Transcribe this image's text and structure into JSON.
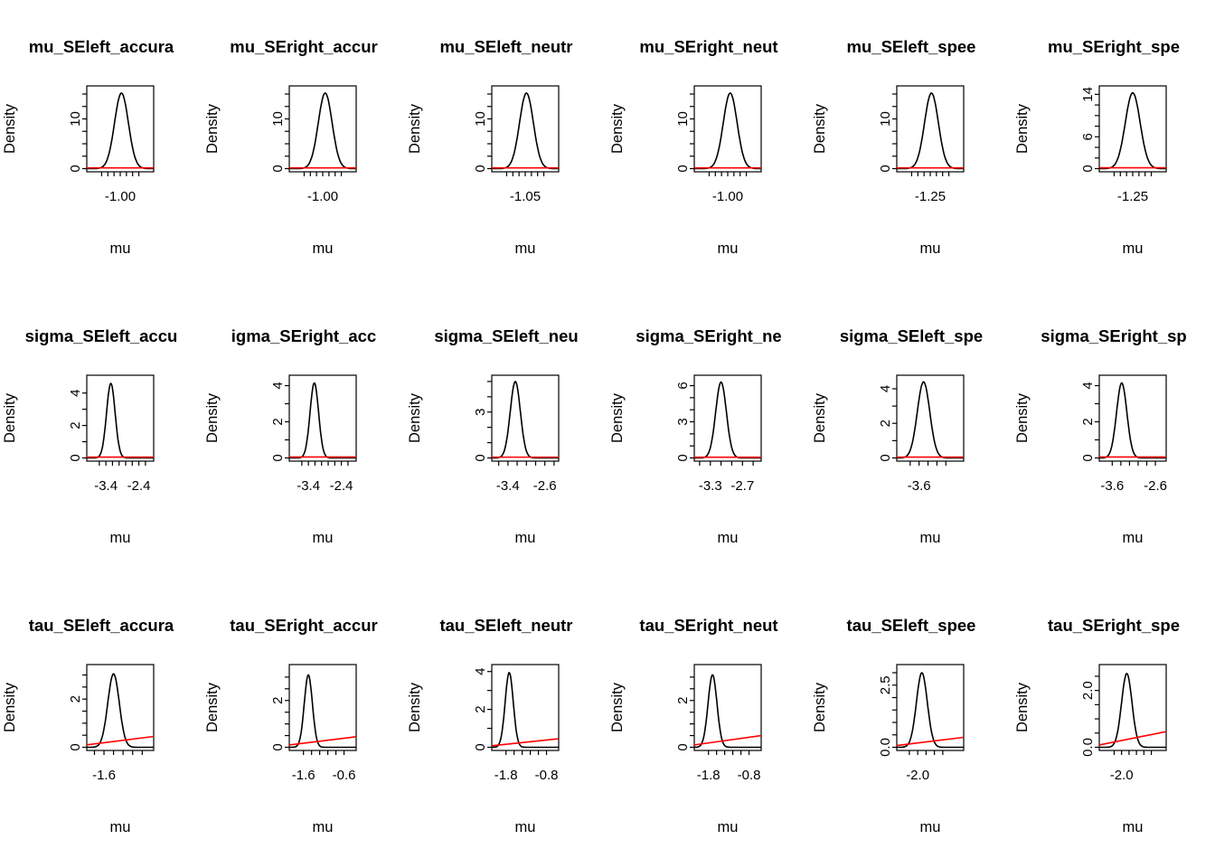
{
  "style": {
    "background": "#ffffff",
    "curve_color": "#000000",
    "prior_color": "#FF0000"
  },
  "chart_data": [
    {
      "type": "line",
      "title": "mu_SEleft_accura",
      "xlabel": "mu",
      "ylabel": "Density",
      "xlim": [
        -1.135,
        -0.865
      ],
      "ylim": [
        0,
        16
      ],
      "x_ticks": [
        -1.075,
        -1.05,
        -1.025,
        -1.0,
        -0.975,
        -0.95,
        -0.925
      ],
      "x_tick_labels": [
        {
          "value": -1.0,
          "label": "-1.00"
        }
      ],
      "y_ticks": [
        0,
        2.5,
        5,
        7.5,
        10,
        12.5,
        15
      ],
      "y_tick_labels": [
        {
          "value": 0,
          "label": "0"
        },
        {
          "value": 10,
          "label": "10"
        }
      ],
      "curve": {
        "mean": -0.995,
        "sd": 0.028,
        "peak": 15.2
      },
      "prior": {
        "y_start": 0.15,
        "y_end": 0.15
      }
    },
    {
      "type": "line",
      "title": "mu_SEright_accur",
      "xlabel": "mu",
      "ylabel": "Density",
      "xlim": [
        -1.135,
        -0.865
      ],
      "ylim": [
        0,
        16
      ],
      "x_ticks": [
        -1.075,
        -1.05,
        -1.025,
        -1.0,
        -0.975,
        -0.95,
        -0.925
      ],
      "x_tick_labels": [
        {
          "value": -1.0,
          "label": "-1.00"
        }
      ],
      "y_ticks": [
        0,
        2.5,
        5,
        7.5,
        10,
        12.5,
        15
      ],
      "y_tick_labels": [
        {
          "value": 0,
          "label": "0"
        },
        {
          "value": 10,
          "label": "10"
        }
      ],
      "curve": {
        "mean": -0.99,
        "sd": 0.028,
        "peak": 15.2
      },
      "prior": {
        "y_start": 0.15,
        "y_end": 0.15
      }
    },
    {
      "type": "line",
      "title": "mu_SEleft_neutr",
      "xlabel": "mu",
      "ylabel": "Density",
      "xlim": [
        -1.185,
        -0.915
      ],
      "ylim": [
        0,
        16
      ],
      "x_ticks": [
        -1.125,
        -1.1,
        -1.075,
        -1.05,
        -1.025,
        -1.0,
        -0.975
      ],
      "x_tick_labels": [
        {
          "value": -1.05,
          "label": "-1.05"
        }
      ],
      "y_ticks": [
        0,
        2.5,
        5,
        7.5,
        10,
        12.5,
        15
      ],
      "y_tick_labels": [
        {
          "value": 0,
          "label": "0"
        },
        {
          "value": 10,
          "label": "10"
        }
      ],
      "curve": {
        "mean": -1.045,
        "sd": 0.028,
        "peak": 15.2
      },
      "prior": {
        "y_start": 0.15,
        "y_end": 0.15
      }
    },
    {
      "type": "line",
      "title": "mu_SEright_neut",
      "xlabel": "mu",
      "ylabel": "Density",
      "xlim": [
        -1.135,
        -0.865
      ],
      "ylim": [
        0,
        16
      ],
      "x_ticks": [
        -1.075,
        -1.05,
        -1.025,
        -1.0,
        -0.975,
        -0.95,
        -0.925
      ],
      "x_tick_labels": [
        {
          "value": -1.0,
          "label": "-1.00"
        }
      ],
      "y_ticks": [
        0,
        2.5,
        5,
        7.5,
        10,
        12.5,
        15
      ],
      "y_tick_labels": [
        {
          "value": 0,
          "label": "0"
        },
        {
          "value": 10,
          "label": "10"
        }
      ],
      "curve": {
        "mean": -0.99,
        "sd": 0.028,
        "peak": 15.2
      },
      "prior": {
        "y_start": 0.15,
        "y_end": 0.15
      }
    },
    {
      "type": "line",
      "title": "mu_SEleft_spee",
      "xlabel": "mu",
      "ylabel": "Density",
      "xlim": [
        -1.385,
        -1.115
      ],
      "ylim": [
        0,
        16
      ],
      "x_ticks": [
        -1.325,
        -1.3,
        -1.275,
        -1.25,
        -1.225,
        -1.2,
        -1.175
      ],
      "x_tick_labels": [
        {
          "value": -1.25,
          "label": "-1.25"
        }
      ],
      "y_ticks": [
        0,
        2.5,
        5,
        7.5,
        10,
        12.5,
        15
      ],
      "y_tick_labels": [
        {
          "value": 0,
          "label": "0"
        },
        {
          "value": 10,
          "label": "10"
        }
      ],
      "curve": {
        "mean": -1.245,
        "sd": 0.028,
        "peak": 15.2
      },
      "prior": {
        "y_start": 0.15,
        "y_end": 0.15
      }
    },
    {
      "type": "line",
      "title": "mu_SEright_spe",
      "xlabel": "mu",
      "ylabel": "Density",
      "xlim": [
        -1.385,
        -1.115
      ],
      "ylim": [
        0,
        15
      ],
      "x_ticks": [
        -1.325,
        -1.3,
        -1.275,
        -1.25,
        -1.225,
        -1.2,
        -1.175
      ],
      "x_tick_labels": [
        {
          "value": -1.25,
          "label": "-1.25"
        }
      ],
      "y_ticks": [
        0,
        2,
        4,
        6,
        8,
        10,
        12,
        14
      ],
      "y_tick_labels": [
        {
          "value": 0,
          "label": "0"
        },
        {
          "value": 6,
          "label": "6"
        },
        {
          "value": 14,
          "label": "14"
        }
      ],
      "curve": {
        "mean": -1.25,
        "sd": 0.03,
        "peak": 14.3
      },
      "prior": {
        "y_start": 0.15,
        "y_end": 0.15
      }
    },
    {
      "type": "line",
      "title": "sigma_SEleft_accu",
      "xlabel": "mu",
      "ylabel": "Density",
      "xlim": [
        -3.98,
        -1.95
      ],
      "ylim": [
        0,
        4.9
      ],
      "x_ticks": [
        -3.6,
        -3.4,
        -3.2,
        -3.0,
        -2.8,
        -2.6,
        -2.4,
        -2.2
      ],
      "x_tick_labels": [
        {
          "value": -3.4,
          "label": "-3.4"
        },
        {
          "value": -2.4,
          "label": "-2.4"
        }
      ],
      "y_ticks": [
        0,
        1,
        2,
        3,
        4
      ],
      "y_tick_labels": [
        {
          "value": 0,
          "label": "0"
        },
        {
          "value": 2,
          "label": "2"
        },
        {
          "value": 4,
          "label": "4"
        }
      ],
      "curve": {
        "mean": -3.25,
        "sd": 0.13,
        "peak": 4.6
      },
      "prior": {
        "y_start": 0.05,
        "y_end": 0.05
      }
    },
    {
      "type": "line",
      "title": "igma_SEright_acc",
      "xlabel": "mu",
      "ylabel": "Density",
      "xlim": [
        -3.98,
        -1.95
      ],
      "ylim": [
        0,
        4.4
      ],
      "x_ticks": [
        -3.6,
        -3.4,
        -3.2,
        -3.0,
        -2.8,
        -2.6,
        -2.4,
        -2.2
      ],
      "x_tick_labels": [
        {
          "value": -3.4,
          "label": "-3.4"
        },
        {
          "value": -2.4,
          "label": "-2.4"
        }
      ],
      "y_ticks": [
        0,
        1,
        2,
        3,
        4
      ],
      "y_tick_labels": [
        {
          "value": 0,
          "label": "0"
        },
        {
          "value": 2,
          "label": "2"
        },
        {
          "value": 4,
          "label": "4"
        }
      ],
      "curve": {
        "mean": -3.22,
        "sd": 0.13,
        "peak": 4.15
      },
      "prior": {
        "y_start": 0.05,
        "y_end": 0.05
      }
    },
    {
      "type": "line",
      "title": "sigma_SEleft_neu",
      "xlabel": "mu",
      "ylabel": "Density",
      "xlim": [
        -3.75,
        -2.3
      ],
      "ylim": [
        0,
        5.2
      ],
      "x_ticks": [
        -3.6,
        -3.4,
        -3.2,
        -3.0,
        -2.8,
        -2.6,
        -2.4
      ],
      "x_tick_labels": [
        {
          "value": -3.4,
          "label": "-3.4"
        },
        {
          "value": -2.6,
          "label": "-2.6"
        }
      ],
      "y_ticks": [
        0,
        1,
        2,
        3,
        4,
        5
      ],
      "y_tick_labels": [
        {
          "value": 0,
          "label": "0"
        },
        {
          "value": 3,
          "label": "3"
        }
      ],
      "curve": {
        "mean": -3.24,
        "sd": 0.11,
        "peak": 5.0
      },
      "prior": {
        "y_start": 0.05,
        "y_end": 0.05
      }
    },
    {
      "type": "line",
      "title": "sigma_SEright_ne",
      "xlabel": "mu",
      "ylabel": "Density",
      "xlim": [
        -3.6,
        -2.35
      ],
      "ylim": [
        0,
        6.6
      ],
      "x_ticks": [
        -3.5,
        -3.3,
        -3.1,
        -2.9,
        -2.7,
        -2.5
      ],
      "x_tick_labels": [
        {
          "value": -3.3,
          "label": "-3.3"
        },
        {
          "value": -2.7,
          "label": "-2.7"
        }
      ],
      "y_ticks": [
        0,
        1,
        2,
        3,
        4,
        5,
        6
      ],
      "y_tick_labels": [
        {
          "value": 0,
          "label": "0"
        },
        {
          "value": 3,
          "label": "3"
        },
        {
          "value": 6,
          "label": "6"
        }
      ],
      "curve": {
        "mean": -3.1,
        "sd": 0.1,
        "peak": 6.3
      },
      "prior": {
        "y_start": 0.06,
        "y_end": 0.06
      }
    },
    {
      "type": "line",
      "title": "sigma_SEleft_spe",
      "xlabel": "mu",
      "ylabel": "Density",
      "xlim": [
        -3.85,
        -3.1
      ],
      "ylim": [
        0,
        4.6
      ],
      "x_ticks": [
        -3.7,
        -3.6,
        -3.5,
        -3.4,
        -3.3
      ],
      "x_tick_labels": [
        {
          "value": -3.6,
          "label": "-3.6"
        }
      ],
      "y_ticks": [
        0,
        1,
        2,
        3,
        4
      ],
      "y_tick_labels": [
        {
          "value": 0,
          "label": "0"
        },
        {
          "value": 2,
          "label": "2"
        },
        {
          "value": 4,
          "label": "4"
        }
      ],
      "curve": {
        "mean": -3.55,
        "sd": 0.07,
        "peak": 4.4
      },
      "prior": {
        "y_start": 0.05,
        "y_end": 0.05
      }
    },
    {
      "type": "line",
      "title": "sigma_SEright_sp",
      "xlabel": "mu",
      "ylabel": "Density",
      "xlim": [
        -3.9,
        -2.35
      ],
      "ylim": [
        0,
        4.4
      ],
      "x_ticks": [
        -3.6,
        -3.4,
        -3.2,
        -3.0,
        -2.8,
        -2.6
      ],
      "x_tick_labels": [
        {
          "value": -3.6,
          "label": "-3.6"
        },
        {
          "value": -2.6,
          "label": "-2.6"
        }
      ],
      "y_ticks": [
        0,
        1,
        2,
        3,
        4
      ],
      "y_tick_labels": [
        {
          "value": 0,
          "label": "0"
        },
        {
          "value": 2,
          "label": "2"
        },
        {
          "value": 4,
          "label": "4"
        }
      ],
      "curve": {
        "mean": -3.38,
        "sd": 0.12,
        "peak": 4.15
      },
      "prior": {
        "y_start": 0.05,
        "y_end": 0.05
      }
    },
    {
      "type": "line",
      "title": "tau_SEleft_accura",
      "xlabel": "mu",
      "ylabel": "Density",
      "xlim": [
        -1.78,
        -1.08
      ],
      "ylim": [
        0,
        3.3
      ],
      "x_ticks": [
        -1.7,
        -1.6,
        -1.5,
        -1.4,
        -1.3,
        -1.2
      ],
      "x_tick_labels": [
        {
          "value": -1.6,
          "label": "-1.6"
        }
      ],
      "y_ticks": [
        0,
        0.5,
        1,
        1.5,
        2,
        2.5,
        3
      ],
      "y_tick_labels": [
        {
          "value": 0,
          "label": "0"
        },
        {
          "value": 2,
          "label": "2"
        }
      ],
      "curve": {
        "mean": -1.5,
        "sd": 0.06,
        "peak": 3.05
      },
      "prior": {
        "y_start": 0.1,
        "y_end": 0.45
      }
    },
    {
      "type": "line",
      "title": "tau_SEright_accur",
      "xlabel": "mu",
      "ylabel": "Density",
      "xlim": [
        -1.95,
        -0.3
      ],
      "ylim": [
        0,
        3.4
      ],
      "x_ticks": [
        -1.6,
        -1.4,
        -1.2,
        -1.0,
        -0.8,
        -0.6
      ],
      "x_tick_labels": [
        {
          "value": -1.6,
          "label": "-1.6"
        },
        {
          "value": -0.6,
          "label": "-0.6"
        }
      ],
      "y_ticks": [
        0,
        0.5,
        1,
        1.5,
        2,
        2.5,
        3
      ],
      "y_tick_labels": [
        {
          "value": 0,
          "label": "0"
        },
        {
          "value": 2,
          "label": "2"
        }
      ],
      "curve": {
        "mean": -1.48,
        "sd": 0.1,
        "peak": 3.1
      },
      "prior": {
        "y_start": 0.1,
        "y_end": 0.45
      }
    },
    {
      "type": "line",
      "title": "tau_SEleft_neutr",
      "xlabel": "mu",
      "ylabel": "Density",
      "xlim": [
        -2.15,
        -0.5
      ],
      "ylim": [
        0,
        4.2
      ],
      "x_ticks": [
        -1.8,
        -1.6,
        -1.4,
        -1.2,
        -1.0,
        -0.8
      ],
      "x_tick_labels": [
        {
          "value": -1.8,
          "label": "-1.8"
        },
        {
          "value": -0.8,
          "label": "-0.8"
        }
      ],
      "y_ticks": [
        0,
        1,
        2,
        3,
        4
      ],
      "y_tick_labels": [
        {
          "value": 0,
          "label": "0"
        },
        {
          "value": 2,
          "label": "2"
        },
        {
          "value": 4,
          "label": "4"
        }
      ],
      "curve": {
        "mean": -1.72,
        "sd": 0.1,
        "peak": 3.95
      },
      "prior": {
        "y_start": 0.08,
        "y_end": 0.45
      }
    },
    {
      "type": "line",
      "title": "tau_SEright_neut",
      "xlabel": "mu",
      "ylabel": "Density",
      "xlim": [
        -2.15,
        -0.5
      ],
      "ylim": [
        0,
        3.4
      ],
      "x_ticks": [
        -1.8,
        -1.6,
        -1.4,
        -1.2,
        -1.0,
        -0.8
      ],
      "x_tick_labels": [
        {
          "value": -1.8,
          "label": "-1.8"
        },
        {
          "value": -0.8,
          "label": "-0.8"
        }
      ],
      "y_ticks": [
        0,
        0.5,
        1,
        1.5,
        2,
        2.5,
        3
      ],
      "y_tick_labels": [
        {
          "value": 0,
          "label": "0"
        },
        {
          "value": 2,
          "label": "2"
        }
      ],
      "curve": {
        "mean": -1.7,
        "sd": 0.11,
        "peak": 3.1
      },
      "prior": {
        "y_start": 0.1,
        "y_end": 0.5
      }
    },
    {
      "type": "line",
      "title": "tau_SEleft_spee",
      "xlabel": "mu",
      "ylabel": "Density",
      "xlim": [
        -2.25,
        -1.45
      ],
      "ylim": [
        0,
        3.2
      ],
      "x_ticks": [
        -2.1,
        -2.0,
        -1.9,
        -1.8,
        -1.7
      ],
      "x_tick_labels": [
        {
          "value": -2.0,
          "label": "-2.0"
        }
      ],
      "y_ticks": [
        0,
        0.5,
        1,
        1.5,
        2,
        2.5,
        3
      ],
      "y_tick_labels": [
        {
          "value": 0,
          "label": "0.0"
        },
        {
          "value": 2.5,
          "label": "2.5"
        }
      ],
      "curve": {
        "mean": -1.95,
        "sd": 0.065,
        "peak": 3.0
      },
      "prior": {
        "y_start": 0.07,
        "y_end": 0.4
      }
    },
    {
      "type": "line",
      "title": "tau_SEright_spe",
      "xlabel": "mu",
      "ylabel": "Density",
      "xlim": [
        -2.3,
        -1.4
      ],
      "ylim": [
        0,
        2.8
      ],
      "x_ticks": [
        -2.1,
        -2.0,
        -1.9,
        -1.8,
        -1.7,
        -1.6
      ],
      "x_tick_labels": [
        {
          "value": -2.0,
          "label": "-2.0"
        }
      ],
      "y_ticks": [
        0,
        0.5,
        1,
        1.5,
        2,
        2.5
      ],
      "y_tick_labels": [
        {
          "value": 0,
          "label": "0.0"
        },
        {
          "value": 2,
          "label": "2.0"
        }
      ],
      "curve": {
        "mean": -1.93,
        "sd": 0.07,
        "peak": 2.6
      },
      "prior": {
        "y_start": 0.08,
        "y_end": 0.55
      }
    }
  ]
}
